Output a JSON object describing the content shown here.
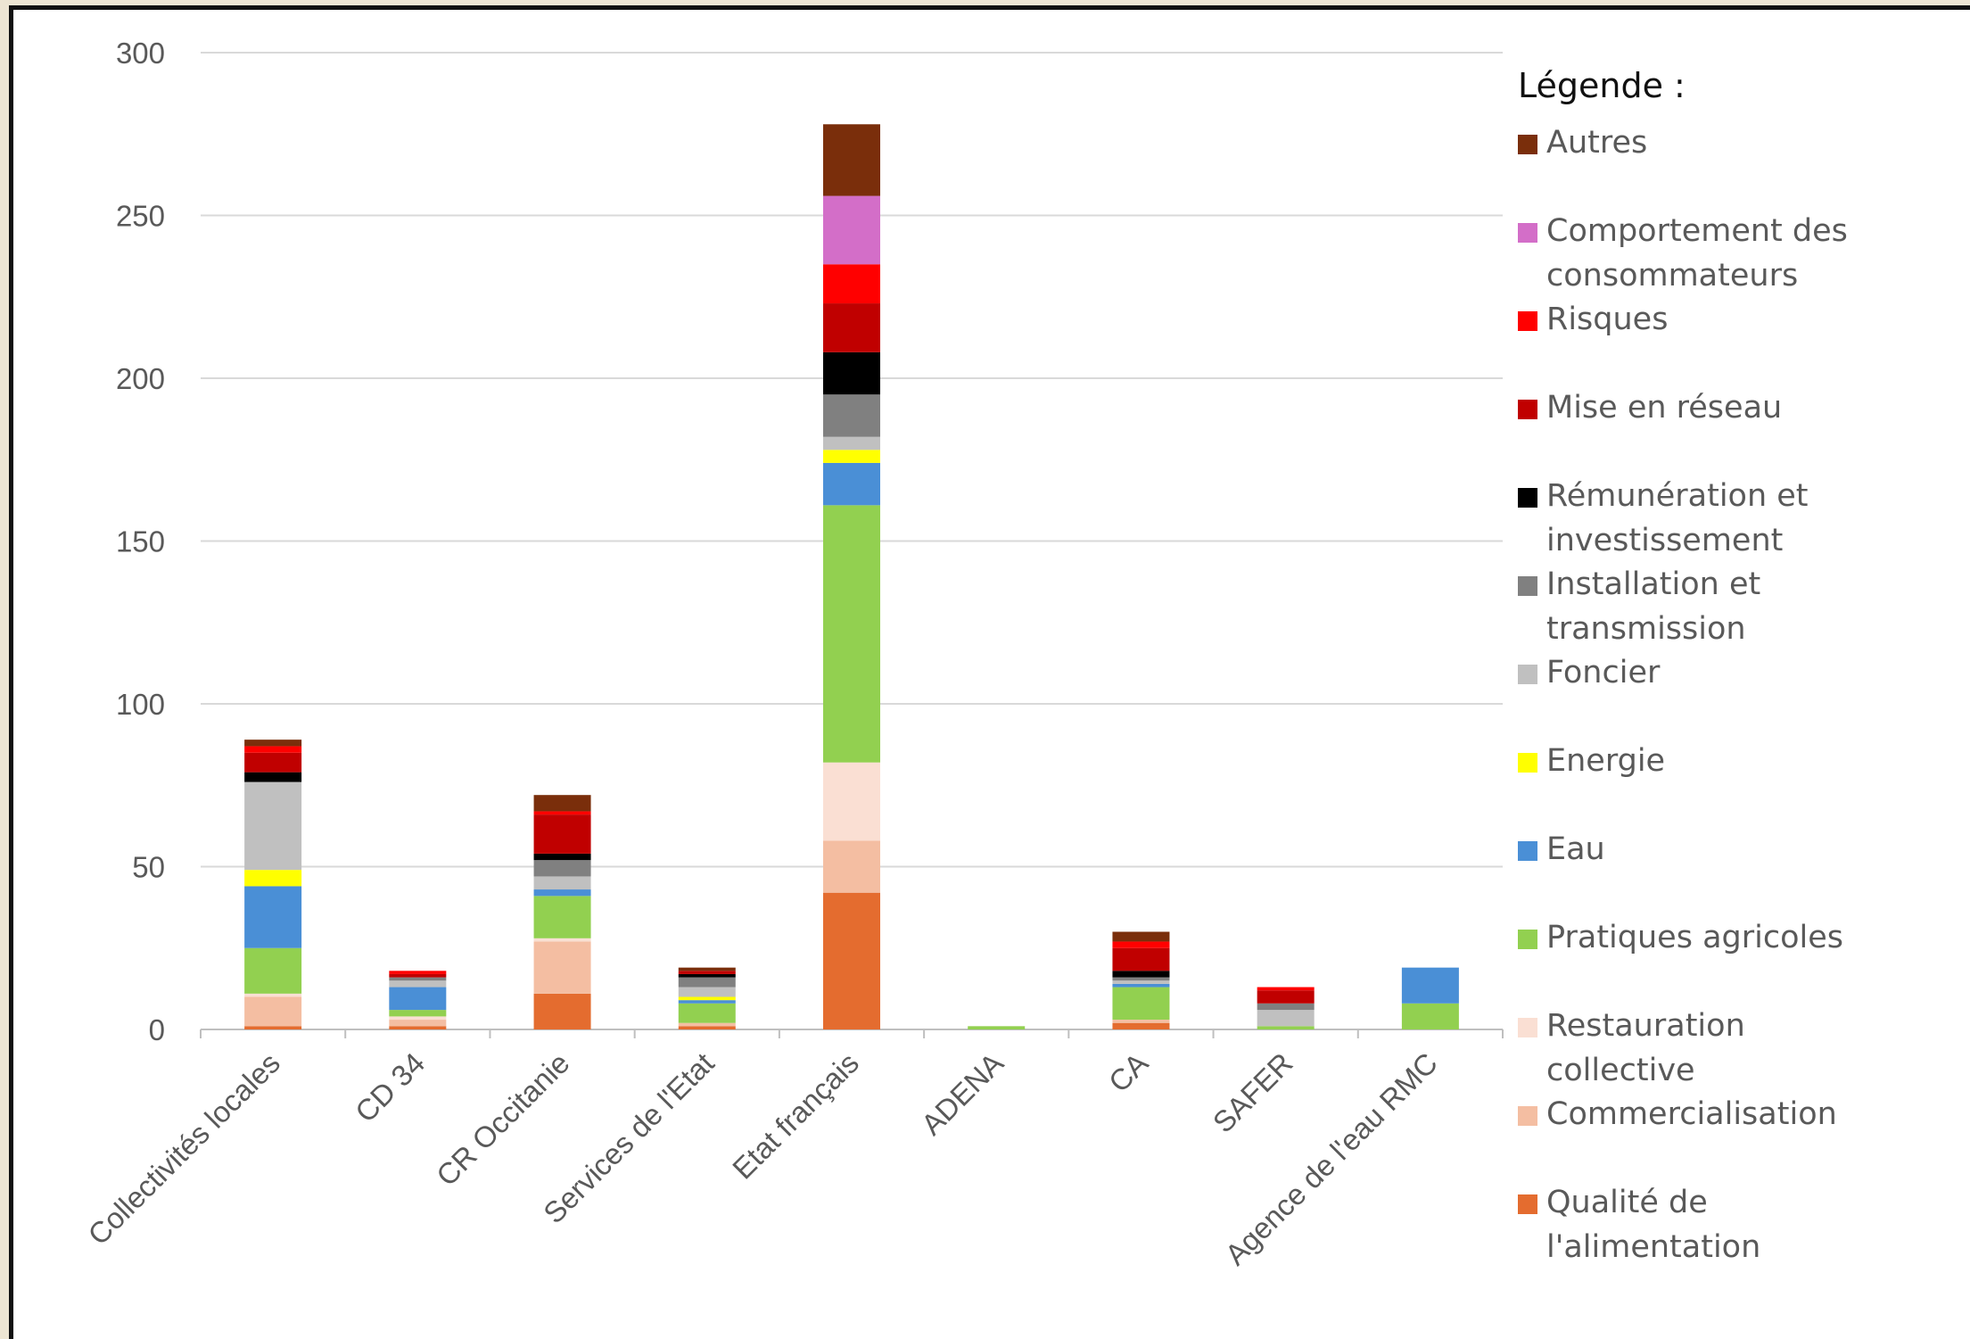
{
  "chart_data": {
    "type": "bar",
    "stacked": true,
    "ylim": [
      0,
      300
    ],
    "yticks": [
      0,
      50,
      100,
      150,
      200,
      250,
      300
    ],
    "grid": true,
    "legend_position": "right",
    "legend_title": "Légende :",
    "categories": [
      "Collectivités locales",
      "CD 34",
      "CR Occitanie",
      "Services de l'Etat",
      "Etat français",
      "ADENA",
      "CA",
      "SAFER",
      "Agence de l'eau RMC"
    ],
    "series": [
      {
        "name": "Qualité de l'alimentation",
        "color": "#e46c2f",
        "values": [
          1,
          1,
          11,
          1,
          42,
          0,
          2,
          0,
          0
        ]
      },
      {
        "name": "Commercialisation",
        "color": "#f4bea2",
        "values": [
          9,
          2,
          16,
          1,
          16,
          0,
          1,
          0,
          0
        ]
      },
      {
        "name": "Restauration collective",
        "color": "#fadfd3",
        "values": [
          1,
          1,
          1,
          0,
          24,
          0,
          0,
          0,
          0
        ]
      },
      {
        "name": "Pratiques agricoles",
        "color": "#92d050",
        "values": [
          14,
          2,
          13,
          6,
          79,
          1,
          10,
          1,
          8
        ]
      },
      {
        "name": "Eau",
        "color": "#4a8fd6",
        "values": [
          19,
          7,
          2,
          1,
          13,
          0,
          1,
          0,
          11
        ]
      },
      {
        "name": "Energie",
        "color": "#ffff00",
        "values": [
          5,
          0,
          0,
          1,
          4,
          0,
          0,
          0,
          0
        ]
      },
      {
        "name": "Foncier",
        "color": "#c0c0c0",
        "values": [
          27,
          2,
          4,
          3,
          4,
          0,
          1,
          5,
          0
        ]
      },
      {
        "name": "Installation et transmission",
        "color": "#808080",
        "values": [
          0,
          1,
          5,
          3,
          13,
          0,
          1,
          2,
          0
        ]
      },
      {
        "name": "Rémunération et investissement",
        "color": "#000000",
        "values": [
          3,
          0,
          2,
          1,
          13,
          0,
          2,
          0,
          0
        ]
      },
      {
        "name": "Mise en réseau",
        "color": "#c00000",
        "values": [
          6,
          1,
          12,
          1,
          15,
          0,
          7,
          4,
          0
        ]
      },
      {
        "name": "Risques",
        "color": "#ff0000",
        "values": [
          2,
          1,
          1,
          0,
          12,
          0,
          2,
          1,
          0
        ]
      },
      {
        "name": "Comportement des consommateurs",
        "color": "#d36ec8",
        "values": [
          0,
          0,
          0,
          0,
          21,
          0,
          0,
          0,
          0
        ]
      },
      {
        "name": "Autres",
        "color": "#7a2e0b",
        "values": [
          2,
          0,
          5,
          1,
          22,
          0,
          3,
          0,
          0
        ]
      }
    ]
  }
}
